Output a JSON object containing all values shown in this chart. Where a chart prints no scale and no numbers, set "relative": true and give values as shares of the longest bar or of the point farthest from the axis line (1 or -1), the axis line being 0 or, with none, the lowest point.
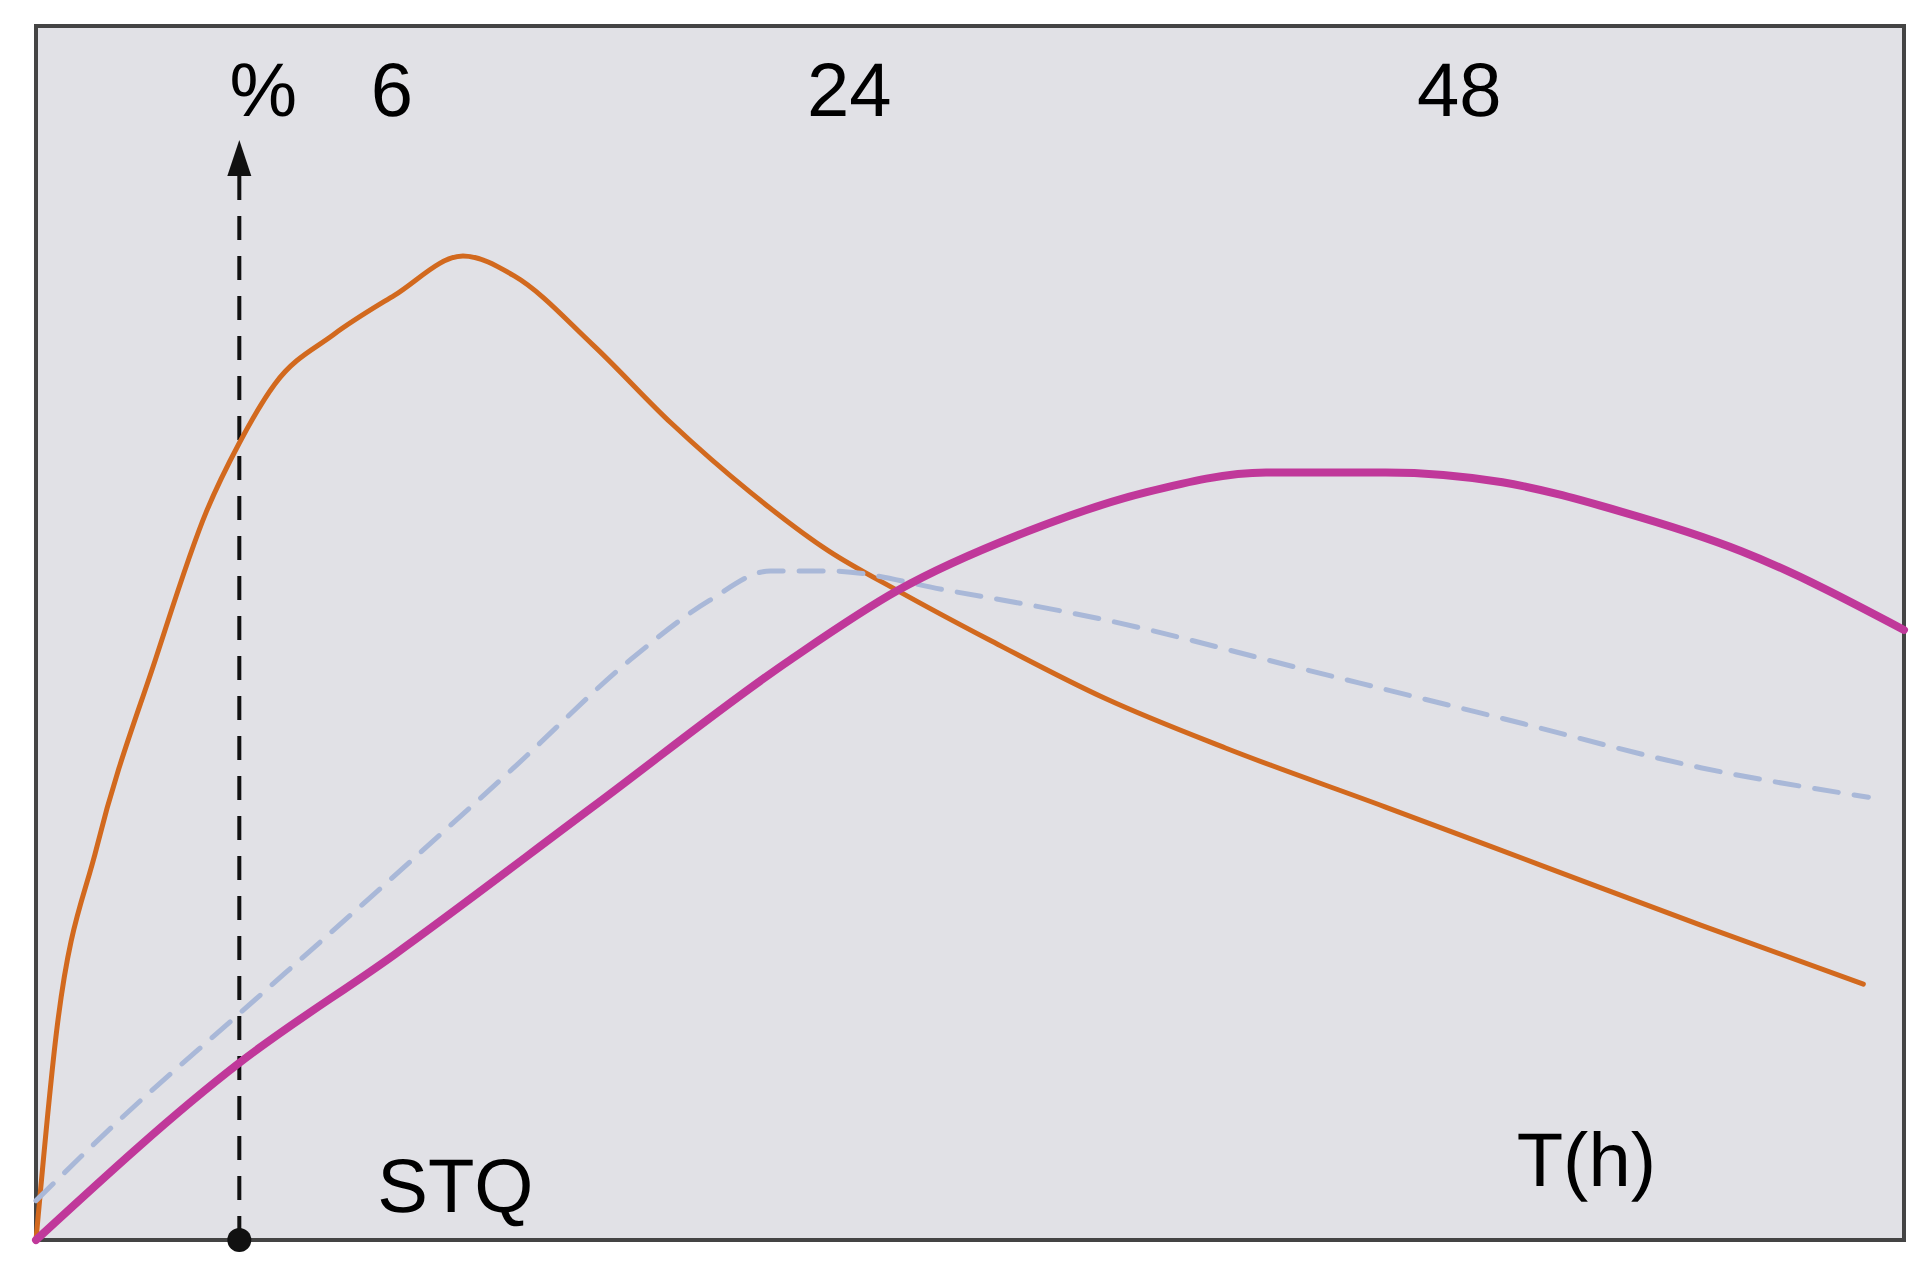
{
  "chart_data": {
    "type": "line",
    "relative": true,
    "xlabel": "T(h)",
    "xlim": [
      -8,
      65.5
    ],
    "xticks": [
      6,
      24,
      48
    ],
    "tick_labels": "x",
    "grid": false,
    "annotations": [
      "STQ"
    ],
    "ref_lines": [
      {
        "axis": "x",
        "value": 0,
        "label": "%",
        "line_style": "dashed",
        "color": "#111111"
      }
    ],
    "series": [
      {
        "color": "#d2691e",
        "line_style": "solid",
        "x": [
          -8,
          -7.2,
          -5.6,
          -3.3,
          -1.3,
          0,
          1.4,
          3.7,
          6.1,
          8.8,
          10.8,
          13.9,
          17.0,
          20.1,
          23.2,
          25.9,
          29.5,
          34.1,
          38.8,
          45.1,
          51.3,
          57.5,
          63.9
        ],
        "values": [
          0,
          0.21,
          0.4,
          0.59,
          0.74,
          0.81,
          0.87,
          0.92,
          0.96,
          1,
          0.98,
          0.91,
          0.83,
          0.76,
          0.7,
          0.66,
          0.61,
          0.55,
          0.5,
          0.44,
          0.38,
          0.32,
          0.26
        ]
      },
      {
        "color": "#a9b8d8",
        "line_style": "dashed",
        "x": [
          -8,
          -4.8,
          0,
          6.1,
          10.8,
          15.4,
          18.5,
          20.9,
          23.2,
          27.9,
          34.1,
          41.9,
          49.7,
          57.5,
          64.1
        ],
        "values": [
          0.04,
          0.12,
          0.23,
          0.37,
          0.48,
          0.59,
          0.65,
          0.68,
          0.68,
          0.66,
          0.63,
          0.58,
          0.53,
          0.48,
          0.45
        ]
      },
      {
        "color": "#c0389a",
        "line_style": "solid",
        "x": [
          -8,
          0,
          6.1,
          13.9,
          21.7,
          25.9,
          31.0,
          35.7,
          40.4,
          45.1,
          49.7,
          54.4,
          59.1,
          65.5
        ],
        "values": [
          0,
          0.18,
          0.29,
          0.44,
          0.59,
          0.66,
          0.72,
          0.76,
          0.78,
          0.78,
          0.77,
          0.74,
          0.7,
          0.62
        ]
      }
    ]
  }
}
